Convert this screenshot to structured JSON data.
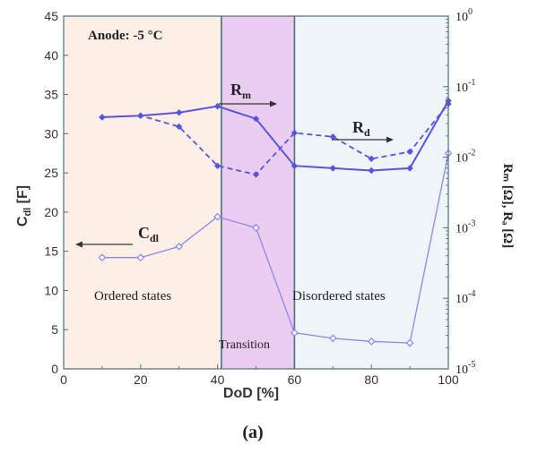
{
  "caption": "(a)",
  "chart_data": {
    "type": "line",
    "annotation_title": "Anode: -5 °C",
    "xlabel": "DoD [%]",
    "ylabel_left": "C",
    "ylabel_left_sub": "dl",
    "ylabel_left_unit": " [F]",
    "ylabel_right": "Rₘ [Ω], Rₐ [Ω]",
    "x_ticks": [
      0,
      20,
      40,
      60,
      80,
      100
    ],
    "y_left_ticks": [
      0,
      5,
      10,
      15,
      20,
      25,
      30,
      35,
      40,
      45
    ],
    "y_right_ticks": [
      {
        "base": "10",
        "exp": "-5"
      },
      {
        "base": "10",
        "exp": "-4"
      },
      {
        "base": "10",
        "exp": "-3"
      },
      {
        "base": "10",
        "exp": "-2"
      },
      {
        "base": "10",
        "exp": "-1"
      },
      {
        "base": "10",
        "exp": "0"
      }
    ],
    "xlim": [
      0,
      100
    ],
    "ylim_left": [
      0,
      45
    ],
    "ylim_right_log10": [
      -5,
      0
    ],
    "regions": [
      {
        "label": "Ordered states",
        "x_start": 0,
        "x_end": 41,
        "color": "#fcefe6"
      },
      {
        "label": "Transition",
        "x_start": 41,
        "x_end": 60,
        "color": "#eccdf2"
      },
      {
        "label": "Disordered states",
        "x_start": 60,
        "x_end": 100,
        "color": "#eef4f8"
      }
    ],
    "series": [
      {
        "name": "C",
        "name_sub": "dl",
        "axis": "left",
        "style": "thin-diamond",
        "color": "#8a86ee",
        "x": [
          10,
          20,
          30,
          40,
          50,
          60,
          70,
          80,
          90,
          100
        ],
        "y": [
          14.2,
          14.2,
          15.6,
          19.4,
          18.0,
          4.6,
          3.9,
          3.5,
          3.3,
          27.5
        ]
      },
      {
        "name": "R",
        "name_sub": "m",
        "axis": "left",
        "style": "solid",
        "color": "#5555dd",
        "x": [
          10,
          20,
          30,
          40,
          50,
          60,
          70,
          80,
          90,
          100
        ],
        "y": [
          32.1,
          32.3,
          32.7,
          33.5,
          31.9,
          25.9,
          25.6,
          25.3,
          25.6,
          34.2
        ]
      },
      {
        "name": "R",
        "name_sub": "d",
        "axis": "left",
        "style": "dashed",
        "color": "#5555dd",
        "x": [
          10,
          20,
          30,
          40,
          50,
          60,
          70,
          80,
          90,
          100
        ],
        "y": [
          32.1,
          32.3,
          30.9,
          25.9,
          24.8,
          30.1,
          29.6,
          26.8,
          27.7,
          33.8
        ]
      }
    ],
    "grid": false,
    "legend": "none"
  }
}
